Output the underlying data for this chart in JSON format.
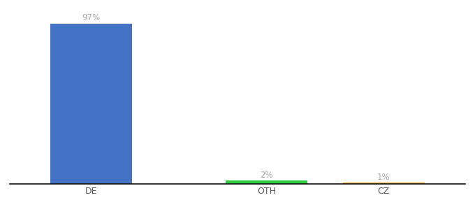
{
  "categories": [
    "DE",
    "OTH",
    "CZ"
  ],
  "values": [
    97,
    2,
    1
  ],
  "bar_colors": [
    "#4472c4",
    "#2ecc40",
    "#f5a623"
  ],
  "labels": [
    "97%",
    "2%",
    "1%"
  ],
  "label_color": "#aaaaaa",
  "background_color": "#ffffff",
  "ylim": [
    0,
    105
  ],
  "bar_width": 0.7,
  "label_fontsize": 8.5,
  "tick_fontsize": 9,
  "spine_color": "#111111",
  "x_positions": [
    1,
    2.5,
    3.5
  ]
}
